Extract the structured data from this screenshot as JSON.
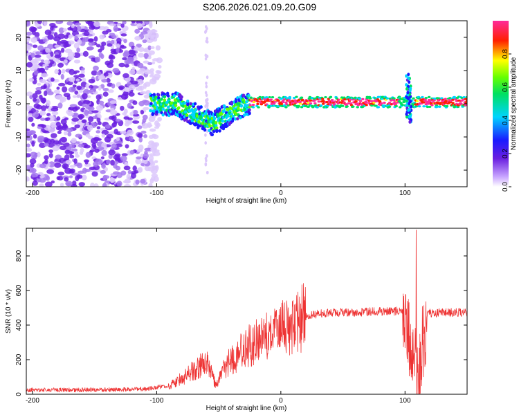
{
  "figure_title": "S206.2026.021.09.20.G09",
  "chart_data": [
    {
      "type": "heatmap",
      "title": "S206.2026.021.09.20.G09",
      "xlabel": "Height of straight line (km)",
      "ylabel": "Frequency (Hz)",
      "xlim": [
        -205,
        150
      ],
      "ylim": [
        -25,
        25
      ],
      "x_ticks": [
        -200,
        -100,
        0,
        100
      ],
      "x_tick_labels": [
        "-200",
        "-100",
        "0",
        "100"
      ],
      "y_ticks": [
        -20,
        -10,
        0,
        10,
        20
      ],
      "y_tick_labels": [
        "-20",
        "-10",
        "0",
        "10",
        "20"
      ],
      "colorbar": {
        "label": "Normalized spectral amplitude",
        "range": [
          0,
          1
        ],
        "ticks": [
          0.0,
          0.2,
          0.4,
          0.6,
          0.8
        ],
        "tick_labels": [
          "0.0",
          "0.2",
          "0.4",
          "0.6",
          "0.8"
        ],
        "colormap": "rainbow (white-purple-blue-cyan-green-yellow-red)"
      },
      "features": {
        "noise_region_km": [
          -205,
          -105
        ],
        "signal_onset_km": -105,
        "dip_min": {
          "x": -55,
          "freq": -6
        },
        "steady_line_km": [
          -25,
          150
        ],
        "steady_freq_hz": 0.5,
        "burst_at_km": 103,
        "burst_freq_range_hz": [
          -6,
          10
        ]
      }
    },
    {
      "type": "line",
      "xlabel": "Height of straight line (km)",
      "ylabel": "SNR (10 * v/v)",
      "xlim": [
        -205,
        150
      ],
      "ylim": [
        0,
        960
      ],
      "x_ticks": [
        -200,
        -100,
        0,
        100
      ],
      "x_tick_labels": [
        "-200",
        "-100",
        "0",
        "100"
      ],
      "y_ticks": [
        0,
        200,
        400,
        600,
        800
      ],
      "y_tick_labels": [
        "0",
        "200",
        "400",
        "600",
        "800"
      ],
      "series": [
        {
          "name": "SNR",
          "color": "#ee3333",
          "envelope": [
            {
              "x": -205,
              "y": 20
            },
            {
              "x": -150,
              "y": 20
            },
            {
              "x": -110,
              "y": 25
            },
            {
              "x": -90,
              "y": 45
            },
            {
              "x": -80,
              "y": 90
            },
            {
              "x": -70,
              "y": 140
            },
            {
              "x": -60,
              "y": 190
            },
            {
              "x": -52,
              "y": 50
            },
            {
              "x": -45,
              "y": 160
            },
            {
              "x": -30,
              "y": 260
            },
            {
              "x": -20,
              "y": 300
            },
            {
              "x": -10,
              "y": 330
            },
            {
              "x": 0,
              "y": 370
            },
            {
              "x": 10,
              "y": 410
            },
            {
              "x": 20,
              "y": 450
            },
            {
              "x": 35,
              "y": 470
            },
            {
              "x": 60,
              "y": 475
            },
            {
              "x": 95,
              "y": 480
            },
            {
              "x": 100,
              "y": 470
            },
            {
              "x": 105,
              "y": 250
            },
            {
              "x": 110,
              "y": 90
            },
            {
              "x": 114,
              "y": 300
            },
            {
              "x": 118,
              "y": 470
            },
            {
              "x": 150,
              "y": 475
            }
          ],
          "peak": {
            "x": 109,
            "y": 950
          }
        }
      ]
    }
  ]
}
